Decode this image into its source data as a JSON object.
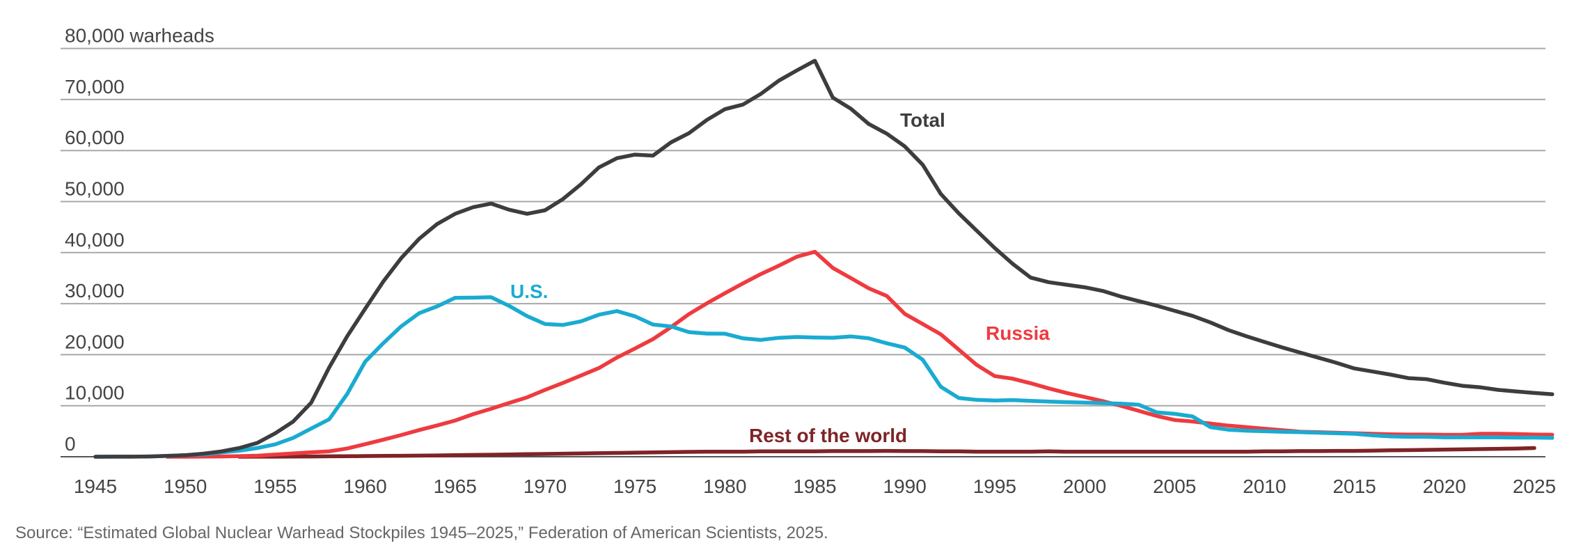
{
  "chart_data": {
    "type": "line",
    "title": "",
    "ylabel": "warheads",
    "xlabel": "",
    "xlim": [
      1945,
      2025
    ],
    "ylim": [
      0,
      80000
    ],
    "grid": true,
    "y_ticks": [
      0,
      10000,
      20000,
      30000,
      40000,
      50000,
      60000,
      70000,
      80000
    ],
    "y_tick_labels": [
      "0",
      "10,000",
      "20,000",
      "30,000",
      "40,000",
      "50,000",
      "60,000",
      "70,000",
      "80,000 warheads"
    ],
    "x_ticks": [
      1945,
      1950,
      1955,
      1960,
      1965,
      1970,
      1975,
      1980,
      1985,
      1990,
      1995,
      2000,
      2005,
      2010,
      2015,
      2020,
      2025
    ],
    "x_tick_labels": [
      "1945",
      "1950",
      "1955",
      "1960",
      "1965",
      "1970",
      "1975",
      "1980",
      "1985",
      "1990",
      "1995",
      "2000",
      "2005",
      "2010",
      "2015",
      "2020",
      "2025"
    ],
    "legend": "inline-labels",
    "series": [
      {
        "name": "Total",
        "label": "Total",
        "color": "#3d3d3f",
        "start_year": 1945,
        "values": [
          2,
          9,
          13,
          50,
          170,
          300,
          600,
          1050,
          1700,
          2700,
          4600,
          6900,
          10600,
          17500,
          23600,
          29000,
          34300,
          38900,
          42700,
          45600,
          47600,
          48900,
          49600,
          48400,
          47600,
          48300,
          50500,
          53400,
          56700,
          58500,
          59200,
          59000,
          61600,
          63400,
          66000,
          68100,
          69000,
          71100,
          73700,
          75700,
          77600,
          70374,
          68200,
          65200,
          63300,
          60800,
          57200,
          51500,
          47700,
          44300,
          40900,
          37800,
          35100,
          34200,
          33700,
          33200,
          32500,
          31400,
          30500,
          29600,
          28600,
          27600,
          26300,
          24800,
          23600,
          22500,
          21400,
          20400,
          19400,
          18400,
          17300,
          16700,
          16100,
          15400,
          15200,
          14500,
          13900,
          13600,
          13100,
          12800,
          12500,
          12241
        ],
        "display_values": [
          2,
          9,
          13,
          50,
          170,
          300,
          600,
          1050,
          1700,
          2700,
          4600,
          6900,
          10600,
          17500,
          23600,
          29000,
          34300,
          38900,
          42700,
          45600,
          47600,
          48900,
          49600,
          48400,
          47600,
          48300,
          50500,
          53400,
          56700,
          58500,
          59200,
          59000,
          61600,
          63400,
          66000,
          68100,
          69000,
          71100,
          73700,
          75700,
          77600,
          70374,
          68200,
          65200,
          63300,
          60800,
          57200,
          51500,
          47700,
          44300,
          40900,
          37800,
          35100,
          34200,
          33700,
          33200,
          32500,
          31400,
          30500,
          29600,
          28600,
          27600,
          26300,
          24800,
          23600,
          22500,
          21400,
          20400,
          19400,
          18400,
          17300,
          16700,
          16100,
          15400,
          15200,
          14500,
          13900,
          13600,
          13100,
          12800,
          12500,
          12241
        ]
      },
      {
        "name": "U.S.",
        "label": "U.S.",
        "color": "#1aabd1",
        "start_year": 1945,
        "values": [
          2,
          9,
          13,
          50,
          170,
          299,
          438,
          841,
          1169,
          1703,
          2422,
          3692,
          5543,
          7345,
          12298,
          18638,
          22229,
          25540,
          28133,
          29463,
          31139,
          31175,
          31255,
          29561,
          27552,
          26008,
          25830,
          26516,
          27835,
          28537,
          27519,
          25914,
          25542,
          24418,
          24138,
          24104,
          23208,
          22886,
          23305,
          23459,
          23368,
          23317,
          23575,
          23205,
          22217,
          21392,
          19008,
          13708,
          11511,
          11150,
          11020,
          11110,
          10950,
          10800,
          10700,
          10600,
          10500,
          10400,
          10200,
          8700,
          8400,
          7900,
          5800,
          5300,
          5100,
          5000,
          4900,
          4800,
          4700,
          4600,
          4500,
          4200,
          4000,
          3900,
          3900,
          3800,
          3800,
          3800,
          3800,
          3750,
          3750,
          3700
        ]
      },
      {
        "name": "Russia",
        "label": "Russia",
        "color": "#ee3b40",
        "start_year": 1949,
        "values": [
          1,
          5,
          25,
          50,
          120,
          200,
          426,
          660,
          869,
          1060,
          1605,
          2471,
          3322,
          4238,
          5221,
          6129,
          7089,
          8339,
          9399,
          10538,
          11643,
          13092,
          14478,
          15915,
          17385,
          19443,
          21205,
          23044,
          25393,
          27935,
          30062,
          32049,
          33952,
          35804,
          37431,
          39197,
          40159,
          37000,
          35000,
          33000,
          31500,
          28000,
          26000,
          24000,
          21000,
          18000,
          15800,
          15300,
          14400,
          13400,
          12500,
          11700,
          10900,
          10000,
          9000,
          8000,
          7200,
          6900,
          6500,
          6100,
          5800,
          5500,
          5200,
          4900,
          4800,
          4700,
          4600,
          4500,
          4400,
          4350,
          4350,
          4300,
          4300,
          4500,
          4500,
          4450,
          4350,
          4309
        ]
      },
      {
        "name": "Rest of the world",
        "label": "Rest of the world",
        "color": "#7e2427",
        "start_year": 1953,
        "values": [
          1,
          10,
          20,
          40,
          60,
          80,
          100,
          130,
          160,
          190,
          220,
          260,
          300,
          350,
          400,
          450,
          500,
          550,
          600,
          650,
          700,
          750,
          800,
          850,
          900,
          950,
          1000,
          1000,
          1000,
          1050,
          1050,
          1050,
          1050,
          1100,
          1100,
          1100,
          1150,
          1100,
          1100,
          1050,
          1050,
          1000,
          1000,
          1000,
          1000,
          1050,
          1000,
          1000,
          1000,
          1000,
          1000,
          1000,
          1000,
          1000,
          1000,
          1000,
          1000,
          1050,
          1050,
          1100,
          1100,
          1150,
          1150,
          1200,
          1250,
          1300,
          1350,
          1400,
          1450,
          1500,
          1550,
          1600,
          1700
        ]
      }
    ],
    "annotations": [
      {
        "text": "Total",
        "series": "Total"
      },
      {
        "text": "U.S.",
        "series": "U.S."
      },
      {
        "text": "Russia",
        "series": "Russia"
      },
      {
        "text": "Rest of the world",
        "series": "Rest of the world"
      }
    ],
    "source": "Source: “Estimated Global Nuclear Warhead Stockpiles 1945–2025,” Federation of American Scientists, 2025."
  }
}
